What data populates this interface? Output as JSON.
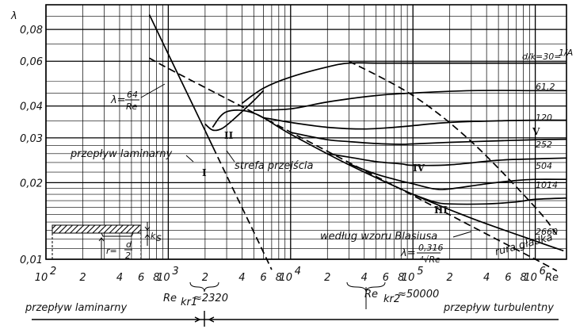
{
  "chart_data": {
    "type": "line",
    "xscale": "log",
    "yscale": "log",
    "xlim": [
      100,
      1800000
    ],
    "ylim": [
      0.01,
      0.1
    ],
    "xlabel": "Re",
    "ylabel": "λ",
    "grid": true,
    "x_ticks": [
      {
        "value": 100,
        "label": "10²",
        "base": "10",
        "exp": "2"
      },
      {
        "value": 200,
        "label": "2"
      },
      {
        "value": 400,
        "label": "4"
      },
      {
        "value": 600,
        "label": "6"
      },
      {
        "value": 800,
        "label": "8"
      },
      {
        "value": 1000,
        "label": "10³",
        "base": "10",
        "exp": "3"
      },
      {
        "value": 2000,
        "label": "2"
      },
      {
        "value": 4000,
        "label": "4"
      },
      {
        "value": 6000,
        "label": "6"
      },
      {
        "value": 8000,
        "label": "8"
      },
      {
        "value": 10000,
        "label": "10⁴",
        "base": "10",
        "exp": "4"
      },
      {
        "value": 20000,
        "label": "2"
      },
      {
        "value": 40000,
        "label": "4"
      },
      {
        "value": 60000,
        "label": "6"
      },
      {
        "value": 80000,
        "label": "8"
      },
      {
        "value": 100000,
        "label": "10⁵",
        "base": "10",
        "exp": "5"
      },
      {
        "value": 200000,
        "label": "2"
      },
      {
        "value": 400000,
        "label": "4"
      },
      {
        "value": 600000,
        "label": "6"
      },
      {
        "value": 800000,
        "label": "8"
      },
      {
        "value": 1000000,
        "label": "10⁶",
        "base": "10",
        "exp": "6"
      }
    ],
    "y_ticks": [
      {
        "value": 0.01,
        "label": "0,01"
      },
      {
        "value": 0.02,
        "label": "0,02"
      },
      {
        "value": 0.03,
        "label": "0,03"
      },
      {
        "value": 0.04,
        "label": "0,04"
      },
      {
        "value": 0.06,
        "label": "0,06"
      },
      {
        "value": 0.08,
        "label": "0,08"
      }
    ],
    "series": [
      {
        "key": "laminar",
        "style": "solid",
        "x": [
          700,
          1000,
          1500,
          2000,
          2320
        ],
        "y": [
          0.0914,
          0.064,
          0.0427,
          0.032,
          0.0276
        ]
      },
      {
        "key": "laminar_ext",
        "style": "dashed",
        "x": [
          2320,
          3000,
          5000,
          7000
        ],
        "y": [
          0.0276,
          0.0213,
          0.0128,
          0.0091
        ]
      },
      {
        "key": "blasius",
        "style": "dashed",
        "x": [
          700,
          1000,
          2000,
          4000,
          10000,
          30000,
          100000,
          300000,
          1000000,
          1500000
        ],
        "y": [
          0.0617,
          0.0562,
          0.0473,
          0.0398,
          0.0316,
          0.024,
          0.0178,
          0.0135,
          0.01,
          0.009
        ]
      },
      {
        "key": "smooth",
        "style": "solid",
        "x": [
          2300,
          3000,
          5000,
          10000,
          30000,
          100000,
          300000,
          1000000,
          1700000
        ],
        "y": [
          0.033,
          0.038,
          0.0375,
          0.031,
          0.0235,
          0.018,
          0.0145,
          0.0118,
          0.0108
        ]
      },
      {
        "key": "transition",
        "style": "solid",
        "x": [
          2000,
          2300,
          2700,
          3200,
          4000,
          5000,
          6000
        ],
        "y": [
          0.034,
          0.0322,
          0.0325,
          0.0345,
          0.038,
          0.042,
          0.046
        ]
      },
      {
        "key": "rough_30",
        "style": "solid",
        "x": [
          4000,
          6000,
          10000,
          20000,
          30000,
          50000,
          100000,
          300000,
          1000000,
          1800000
        ],
        "y": [
          0.041,
          0.047,
          0.052,
          0.057,
          0.059,
          0.059,
          0.059,
          0.059,
          0.059,
          0.059
        ]
      },
      {
        "key": "rough_61",
        "style": "solid",
        "x": [
          5000,
          10000,
          20000,
          50000,
          100000,
          300000,
          1000000,
          1800000
        ],
        "y": [
          0.0385,
          0.039,
          0.0415,
          0.044,
          0.045,
          0.046,
          0.046,
          0.046
        ]
      },
      {
        "key": "rough_120",
        "style": "solid",
        "x": [
          6000,
          10000,
          20000,
          40000,
          70000,
          100000,
          200000,
          500000,
          1000000,
          1800000
        ],
        "y": [
          0.036,
          0.0345,
          0.033,
          0.0325,
          0.033,
          0.0335,
          0.0345,
          0.035,
          0.0352,
          0.0352
        ]
      },
      {
        "key": "rough_252",
        "style": "solid",
        "x": [
          10000,
          20000,
          30000,
          50000,
          80000,
          100000,
          200000,
          500000,
          1000000,
          1800000
        ],
        "y": [
          0.0315,
          0.0295,
          0.029,
          0.0285,
          0.0283,
          0.0284,
          0.0288,
          0.0292,
          0.0295,
          0.0296
        ]
      },
      {
        "key": "rough_504",
        "style": "solid",
        "x": [
          20000,
          30000,
          50000,
          80000,
          100000,
          200000,
          500000,
          1000000,
          1800000
        ],
        "y": [
          0.026,
          0.0252,
          0.0242,
          0.0237,
          0.0234,
          0.0235,
          0.0245,
          0.0248,
          0.025
        ]
      },
      {
        "key": "rough_1014",
        "style": "solid",
        "x": [
          30000,
          50000,
          80000,
          100000,
          150000,
          200000,
          400000,
          700000,
          1000000,
          1800000
        ],
        "y": [
          0.0237,
          0.0216,
          0.0203,
          0.0198,
          0.0189,
          0.0189,
          0.0198,
          0.0204,
          0.0206,
          0.0206
        ]
      },
      {
        "key": "rough_2660",
        "style": "solid",
        "x": [
          100000,
          150000,
          200000,
          400000,
          700000,
          1000000,
          1800000
        ],
        "y": [
          0.018,
          0.0168,
          0.0165,
          0.0165,
          0.0168,
          0.0172,
          0.0174
        ]
      },
      {
        "key": "fully_rough_boundary",
        "style": "dashed",
        "x": [
          30000,
          100000,
          300000,
          1000000,
          1500000
        ],
        "y": [
          0.06,
          0.044,
          0.029,
          0.016,
          0.0125
        ]
      }
    ],
    "curve_labels": [
      {
        "text": "d/k=30=",
        "fraction": "1/A"
      },
      {
        "text": "61,2"
      },
      {
        "text": "120"
      },
      {
        "text": "252"
      },
      {
        "text": "504"
      },
      {
        "text": "1014"
      },
      {
        "text": "2660"
      }
    ],
    "annotations": {
      "laminar_flow": "przepływ laminarny",
      "transition_zone": "strefa przejścia",
      "blasius_formula": "według wzoru Blasiusa",
      "smooth_pipe": "rura gładka",
      "region_I": "I",
      "region_II": "II",
      "region_III": "III",
      "region_IV": "IV",
      "region_V": "V",
      "laminar_formula": {
        "lhs": "λ=",
        "num": "64",
        "den": "Re"
      },
      "blasius_eq": {
        "lhs": "λ=",
        "num": "0,316",
        "den": "⁴√Re"
      },
      "re_kr1": {
        "base": "Re",
        "sub": "kr1",
        "rest": "≈2320"
      },
      "re_kr2": {
        "base": "Re",
        "sub": "kr2",
        "rest": "≈50000"
      },
      "bottom_laminar": "przepływ laminarny",
      "bottom_turbulent": "przepływ turbulentny",
      "pipe_ks": "k",
      "pipe_ks_sub": "s",
      "pipe_r": "r=",
      "pipe_r_num": "d",
      "pipe_r_den": "2"
    }
  }
}
